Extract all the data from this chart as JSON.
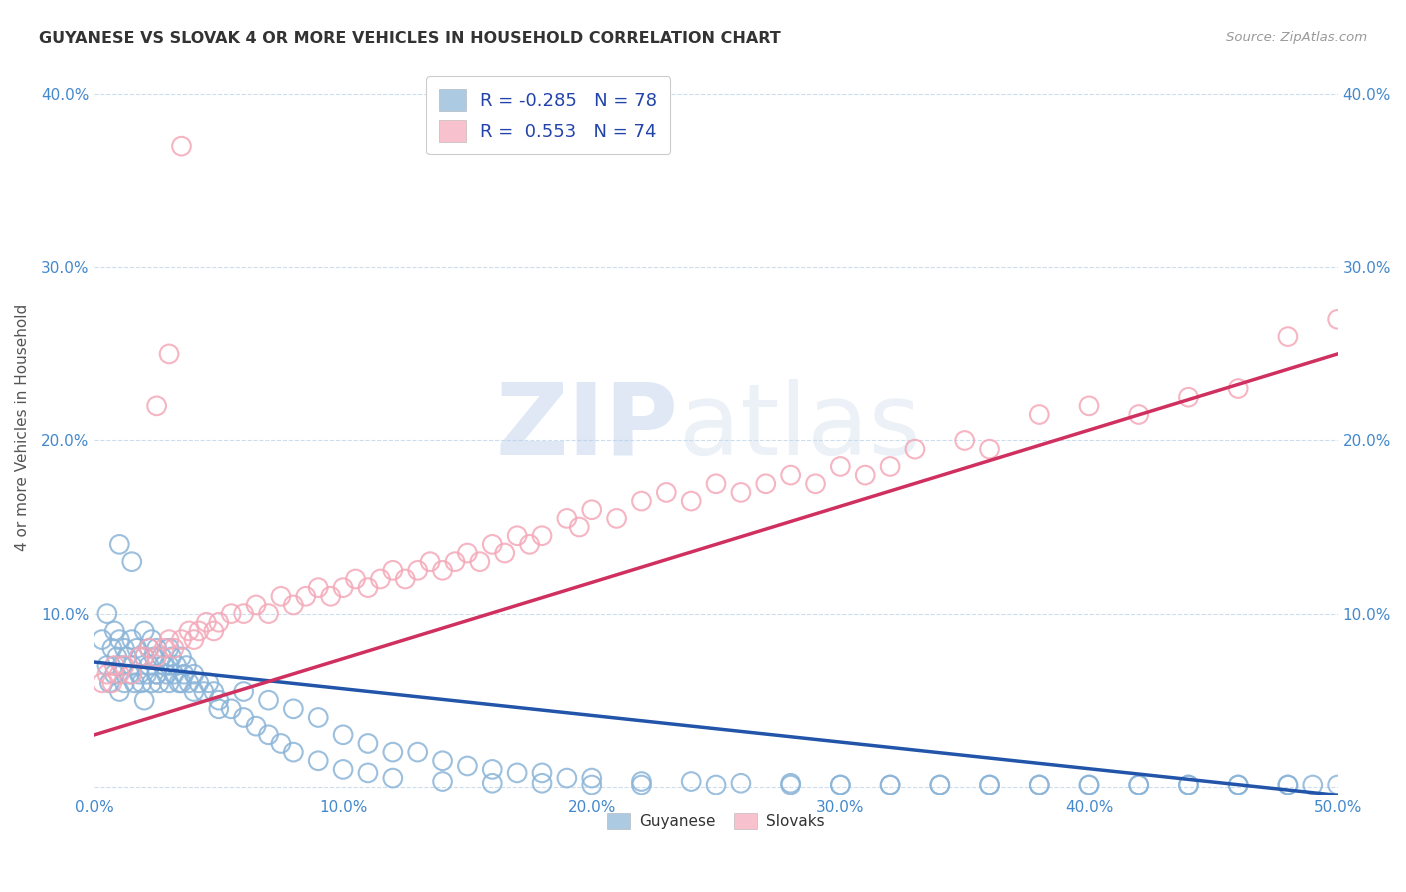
{
  "title": "GUYANESE VS SLOVAK 4 OR MORE VEHICLES IN HOUSEHOLD CORRELATION CHART",
  "source": "Source: ZipAtlas.com",
  "ylabel": "4 or more Vehicles in Household",
  "xlim": [
    0.0,
    0.5
  ],
  "ylim": [
    -0.005,
    0.42
  ],
  "xticks": [
    0.0,
    0.1,
    0.2,
    0.3,
    0.4,
    0.5
  ],
  "yticks": [
    0.0,
    0.1,
    0.2,
    0.3,
    0.4
  ],
  "xticklabels": [
    "0.0%",
    "10.0%",
    "20.0%",
    "30.0%",
    "40.0%",
    "50.0%"
  ],
  "yticklabels": [
    "",
    "10.0%",
    "20.0%",
    "30.0%",
    "40.0%"
  ],
  "legend_R_blue": "-0.285",
  "legend_N_blue": "78",
  "legend_R_pink": "0.553",
  "legend_N_pink": "74",
  "blue_color": "#8ab4d8",
  "pink_color": "#f4a8b8",
  "blue_line_color": "#2255aa",
  "pink_line_color": "#d03060",
  "watermark_zip": "ZIP",
  "watermark_atlas": "atlas",
  "guyanese_x": [
    0.003,
    0.005,
    0.006,
    0.007,
    0.008,
    0.008,
    0.009,
    0.01,
    0.01,
    0.011,
    0.012,
    0.012,
    0.013,
    0.014,
    0.015,
    0.015,
    0.016,
    0.017,
    0.018,
    0.018,
    0.019,
    0.02,
    0.02,
    0.021,
    0.022,
    0.022,
    0.023,
    0.023,
    0.024,
    0.025,
    0.025,
    0.026,
    0.027,
    0.028,
    0.029,
    0.03,
    0.03,
    0.031,
    0.032,
    0.033,
    0.034,
    0.035,
    0.036,
    0.037,
    0.038,
    0.04,
    0.042,
    0.044,
    0.046,
    0.048,
    0.05,
    0.055,
    0.06,
    0.065,
    0.07,
    0.075,
    0.08,
    0.09,
    0.1,
    0.11,
    0.12,
    0.14,
    0.16,
    0.18,
    0.2,
    0.22,
    0.25,
    0.28,
    0.3,
    0.32,
    0.34,
    0.36,
    0.38,
    0.4,
    0.42,
    0.44,
    0.46,
    0.48
  ],
  "guyanese_y": [
    0.085,
    0.07,
    0.06,
    0.08,
    0.09,
    0.065,
    0.075,
    0.055,
    0.085,
    0.07,
    0.06,
    0.08,
    0.075,
    0.065,
    0.07,
    0.085,
    0.06,
    0.08,
    0.075,
    0.065,
    0.06,
    0.075,
    0.09,
    0.065,
    0.07,
    0.08,
    0.06,
    0.085,
    0.075,
    0.065,
    0.08,
    0.06,
    0.075,
    0.07,
    0.065,
    0.08,
    0.06,
    0.075,
    0.065,
    0.07,
    0.06,
    0.075,
    0.065,
    0.07,
    0.06,
    0.065,
    0.06,
    0.055,
    0.06,
    0.055,
    0.05,
    0.045,
    0.04,
    0.035,
    0.03,
    0.025,
    0.02,
    0.015,
    0.01,
    0.008,
    0.005,
    0.003,
    0.002,
    0.002,
    0.001,
    0.001,
    0.001,
    0.001,
    0.001,
    0.001,
    0.001,
    0.001,
    0.001,
    0.001,
    0.001,
    0.001,
    0.001,
    0.001
  ],
  "guyanese_extra_x": [
    0.005,
    0.01,
    0.015,
    0.02,
    0.025,
    0.03,
    0.035,
    0.04,
    0.05,
    0.06,
    0.07,
    0.08,
    0.09,
    0.1,
    0.11,
    0.12,
    0.13,
    0.14,
    0.15,
    0.16,
    0.17,
    0.18,
    0.19,
    0.2,
    0.22,
    0.24,
    0.26,
    0.28,
    0.3,
    0.32,
    0.34,
    0.36,
    0.38,
    0.4,
    0.42,
    0.44,
    0.46,
    0.48,
    0.49,
    0.5
  ],
  "guyanese_extra_y": [
    0.1,
    0.14,
    0.13,
    0.05,
    0.065,
    0.07,
    0.06,
    0.055,
    0.045,
    0.055,
    0.05,
    0.045,
    0.04,
    0.03,
    0.025,
    0.02,
    0.02,
    0.015,
    0.012,
    0.01,
    0.008,
    0.008,
    0.005,
    0.005,
    0.003,
    0.003,
    0.002,
    0.002,
    0.001,
    0.001,
    0.001,
    0.001,
    0.001,
    0.001,
    0.001,
    0.001,
    0.001,
    0.001,
    0.001,
    0.001
  ],
  "slovak_x": [
    0.003,
    0.005,
    0.007,
    0.008,
    0.01,
    0.012,
    0.015,
    0.018,
    0.02,
    0.022,
    0.025,
    0.028,
    0.03,
    0.032,
    0.035,
    0.038,
    0.04,
    0.042,
    0.045,
    0.048,
    0.05,
    0.055,
    0.06,
    0.065,
    0.07,
    0.075,
    0.08,
    0.085,
    0.09,
    0.095,
    0.1,
    0.105,
    0.11,
    0.115,
    0.12,
    0.125,
    0.13,
    0.135,
    0.14,
    0.145,
    0.15,
    0.155,
    0.16,
    0.165,
    0.17,
    0.175,
    0.18,
    0.19,
    0.195,
    0.2,
    0.21,
    0.22,
    0.23,
    0.24,
    0.25,
    0.26,
    0.27,
    0.28,
    0.29,
    0.3,
    0.31,
    0.32,
    0.33,
    0.35,
    0.36,
    0.38,
    0.4,
    0.42,
    0.44,
    0.46,
    0.48,
    0.5,
    0.025,
    0.03,
    0.035
  ],
  "slovak_y": [
    0.06,
    0.065,
    0.06,
    0.07,
    0.065,
    0.07,
    0.065,
    0.075,
    0.075,
    0.08,
    0.075,
    0.08,
    0.085,
    0.08,
    0.085,
    0.09,
    0.085,
    0.09,
    0.095,
    0.09,
    0.095,
    0.1,
    0.1,
    0.105,
    0.1,
    0.11,
    0.105,
    0.11,
    0.115,
    0.11,
    0.115,
    0.12,
    0.115,
    0.12,
    0.125,
    0.12,
    0.125,
    0.13,
    0.125,
    0.13,
    0.135,
    0.13,
    0.14,
    0.135,
    0.145,
    0.14,
    0.145,
    0.155,
    0.15,
    0.16,
    0.155,
    0.165,
    0.17,
    0.165,
    0.175,
    0.17,
    0.175,
    0.18,
    0.175,
    0.185,
    0.18,
    0.185,
    0.195,
    0.2,
    0.195,
    0.215,
    0.22,
    0.215,
    0.225,
    0.23,
    0.26,
    0.27,
    0.22,
    0.25,
    0.37
  ],
  "blue_trend_x": [
    0.0,
    0.5
  ],
  "blue_trend_y": [
    0.072,
    -0.005
  ],
  "pink_trend_x": [
    0.0,
    0.5
  ],
  "pink_trend_y": [
    0.03,
    0.25
  ]
}
